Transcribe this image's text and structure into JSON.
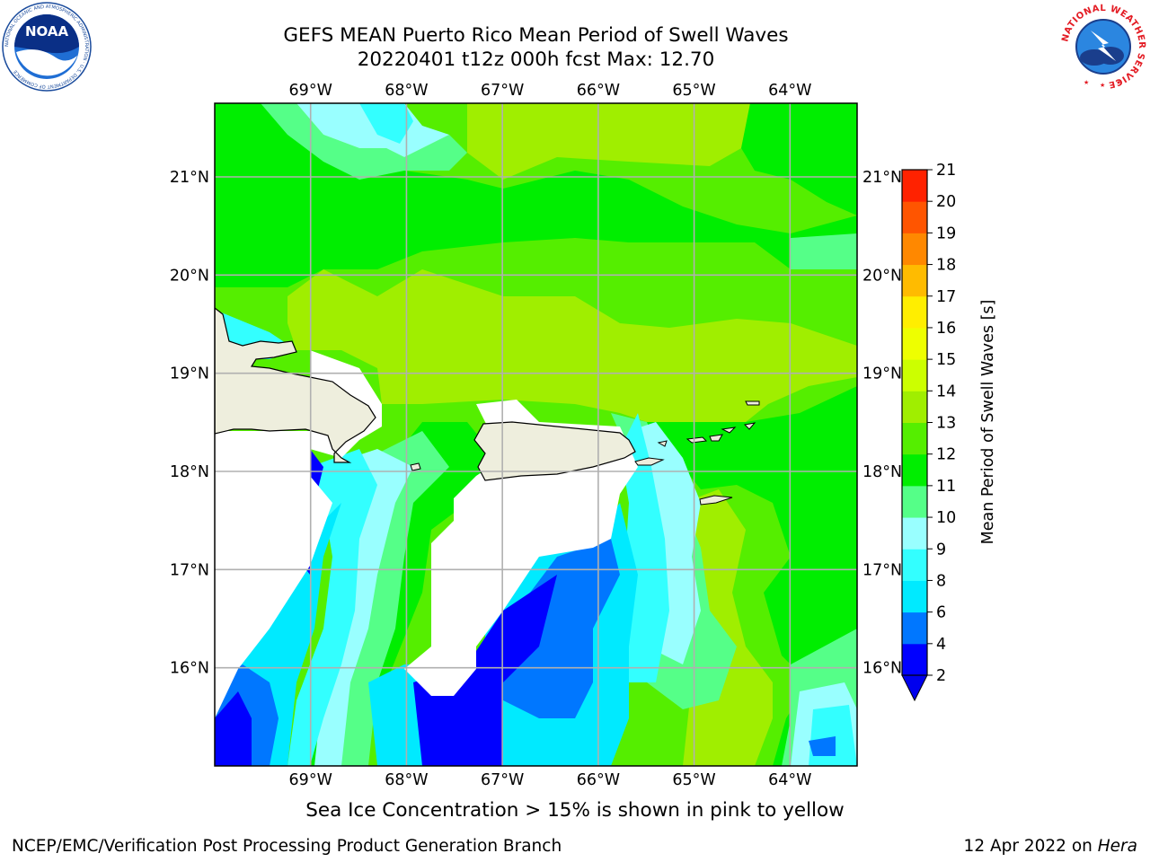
{
  "title": {
    "line1": "GEFS MEAN Puerto Rico Mean Period of Swell Waves",
    "line2": "20220401 t12z 000h fcst   Max: 12.70"
  },
  "axes": {
    "lon_labels": [
      "69°W",
      "68°W",
      "67°W",
      "66°W",
      "65°W",
      "64°W"
    ],
    "lat_labels": [
      "21°N",
      "20°N",
      "19°N",
      "18°N",
      "17°N",
      "16°N"
    ],
    "lon_values": [
      -69,
      -68,
      -67,
      -66,
      -65,
      -64
    ],
    "lat_values": [
      21,
      20,
      19,
      18,
      17,
      16
    ],
    "extent": {
      "lon": [
        -70,
        -63.3
      ],
      "lat": [
        15,
        21.75
      ]
    }
  },
  "colorbar": {
    "label": "Mean Period of Swell Waves [s]",
    "ticks": [
      "2",
      "4",
      "6",
      "8",
      "9",
      "10",
      "11",
      "12",
      "13",
      "14",
      "15",
      "16",
      "17",
      "18",
      "19",
      "20",
      "21"
    ],
    "colors": [
      "#0000ff",
      "#0077ff",
      "#00eaff",
      "#33ffff",
      "#99ffff",
      "#55ff88",
      "#00ee00",
      "#55ee00",
      "#a0ee00",
      "#ccff00",
      "#eeff00",
      "#ffee00",
      "#ffbb00",
      "#ff8800",
      "#ff5500",
      "#ff2200",
      "#ff0000"
    ],
    "under_color": "#0000ee"
  },
  "note": "Sea Ice Concentration > 15% is shown in pink to yellow",
  "footer": {
    "left": "NCEP/EMC/Verification Post Processing Product Generation Branch",
    "right_prefix": "12 Apr 2022 on ",
    "right_host": "Hera"
  },
  "logos": {
    "noaa_text": "NOAA",
    "nws_text": "NATIONAL WEATHER SERVICE",
    "noaa_ring_text": "NATIONAL OCEANIC AND ATMOSPHERIC ADMINISTRATION · U.S. DEPARTMENT OF COMMERCE"
  },
  "colors": {
    "land": "#eeeedd",
    "nodata": "#ffffff",
    "grid": "#b0b0b0"
  }
}
